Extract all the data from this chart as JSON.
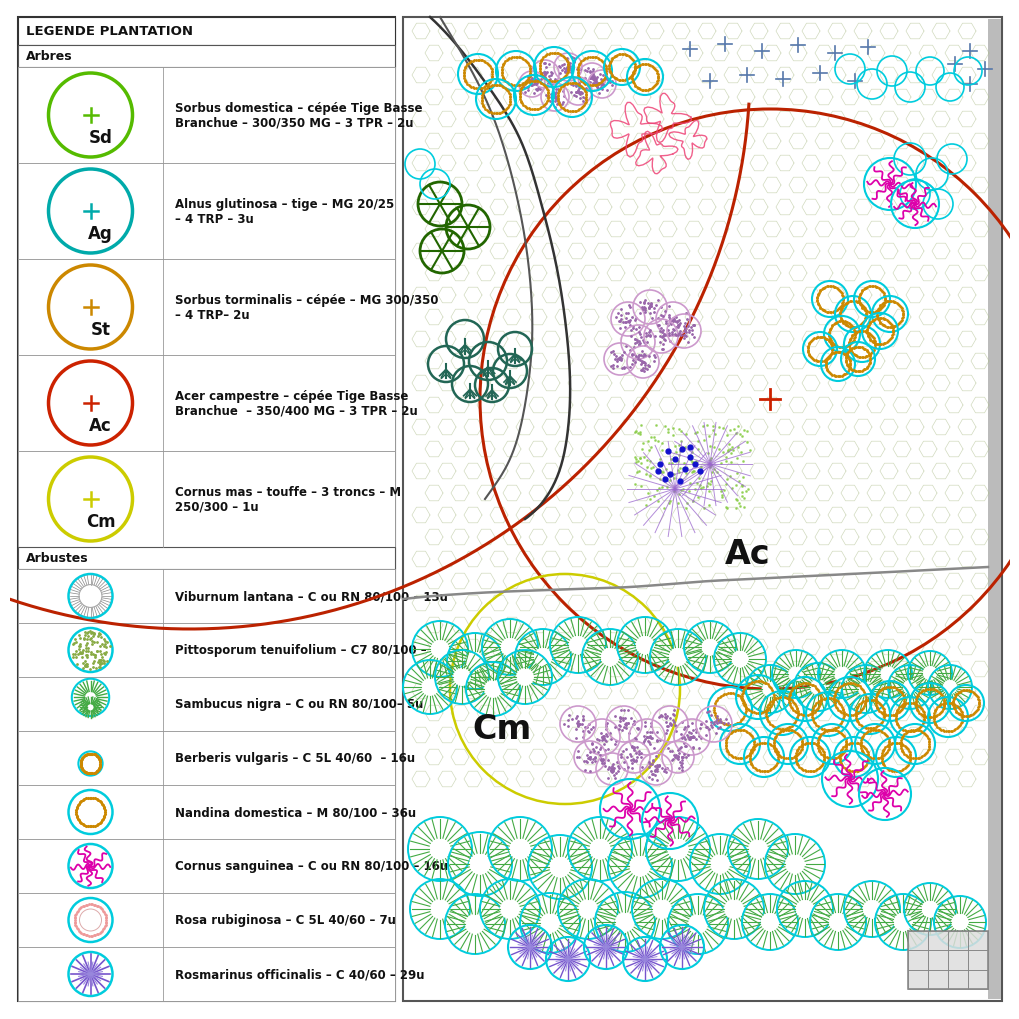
{
  "title": "LEGENDE PLANTATION",
  "background_color": "#ffffff",
  "section_trees": "Arbres",
  "section_shrubs": "Arbustes",
  "trees": [
    {
      "code": "Sd",
      "circle_color": "#55bb00",
      "plus_color": "#55bb00",
      "description": "Sorbus domestica – cépée Tige Basse\nBranchue – 300/350 MG – 3 TPR – 2u"
    },
    {
      "code": "Ag",
      "circle_color": "#00aaaa",
      "plus_color": "#00aaaa",
      "description": "Alnus glutinosa – tige – MG 20/25\n– 4 TRP – 3u"
    },
    {
      "code": "St",
      "circle_color": "#cc8800",
      "plus_color": "#cc8800",
      "description": "Sorbus torminalis – cépée – MG 300/350\n– 4 TRP– 2u"
    },
    {
      "code": "Ac",
      "circle_color": "#cc2200",
      "plus_color": "#cc2200",
      "description": "Acer campestre – cépée Tige Basse\nBranchue  – 350/400 MG – 3 TPR – 2u"
    },
    {
      "code": "Cm",
      "circle_color": "#cccc00",
      "plus_color": "#cccc00",
      "description": "Cornus mas – touffe – 3 troncs – M\n250/300 – 1u"
    }
  ],
  "shrubs": [
    {
      "description": "Viburnum lantana – C ou RN 80/100 – 13u",
      "circle_color": "#00ccdd",
      "type": "radial_fine"
    },
    {
      "description": "Pittosporum tenuifolium – C7 80/100 – 8u",
      "circle_color": "#00ccdd",
      "type": "dotted_green"
    },
    {
      "description": "Sambucus nigra – C ou RN 80/100– 5u",
      "circle_color": "#00ccdd",
      "type": "radial_large"
    },
    {
      "description": "Berberis vulgaris – C 5L 40/60  – 16u",
      "circle_color": "#00ccdd",
      "type": "dotted_orange"
    },
    {
      "description": "Nandina domestica – M 80/100 – 36u",
      "circle_color": "#00ccdd",
      "type": "dotted_nandina"
    },
    {
      "description": "Cornus sanguinea – C ou RN 80/100 – 16u",
      "circle_color": "#00ccdd",
      "type": "wiggly_magenta"
    },
    {
      "description": "Rosa rubiginosa – C 5L 40/60 – 7u",
      "circle_color": "#00ccdd",
      "type": "rosa"
    },
    {
      "description": "Rosmarinus officinalis – C 40/60 – 29u",
      "circle_color": "#00ccdd",
      "type": "rosmarinus"
    }
  ]
}
